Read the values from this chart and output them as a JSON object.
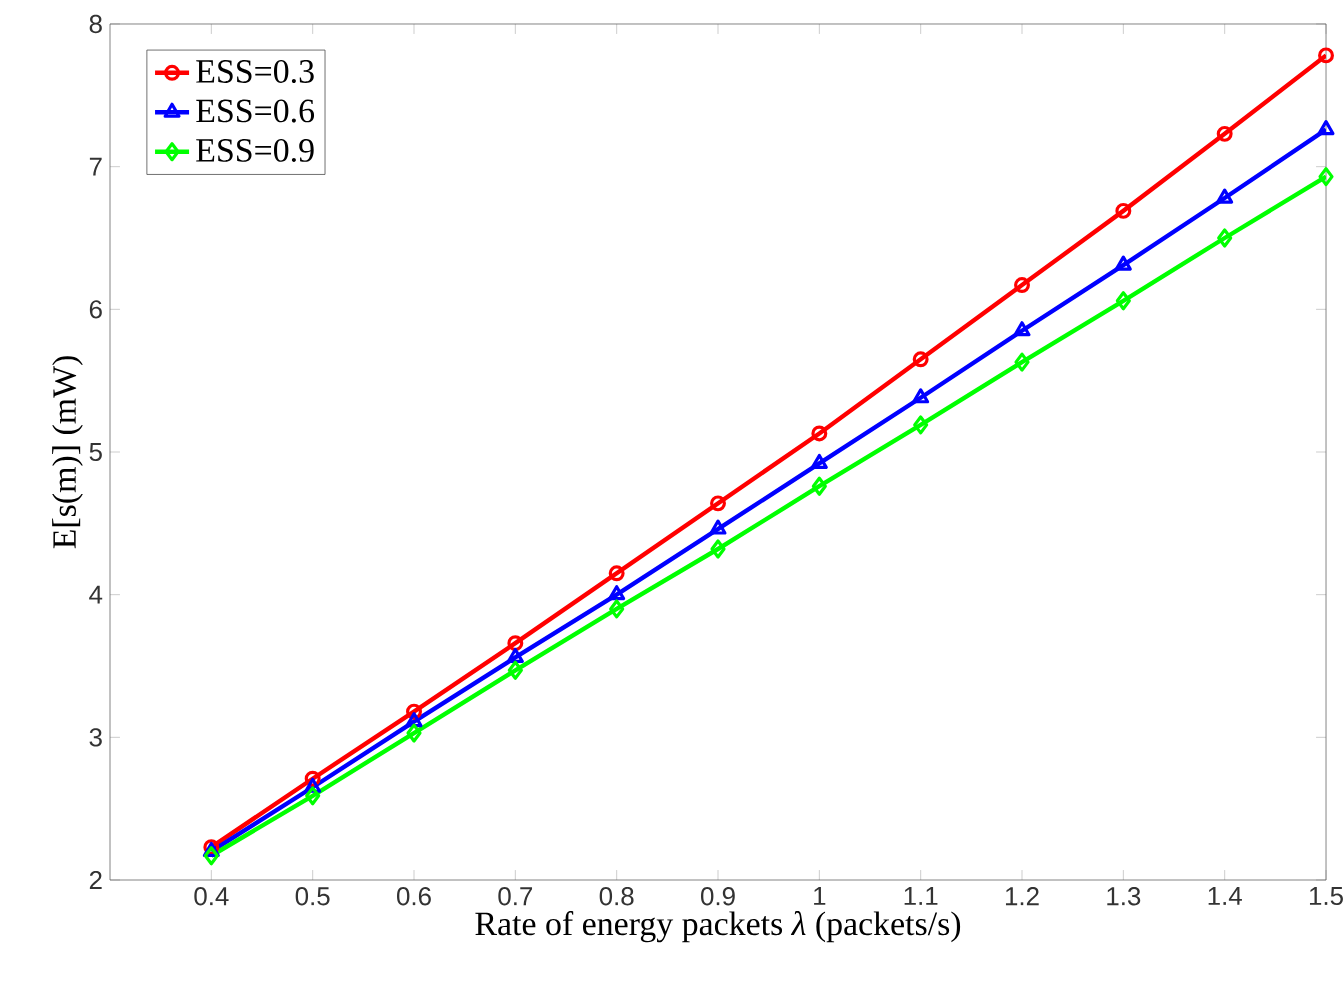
{
  "chart_data": {
    "type": "line",
    "xlabel": "Rate of energy packets *λ* (packets/s)",
    "ylabel": "E[s(m)] (mW)",
    "x": [
      0.4,
      0.5,
      0.6,
      0.7,
      0.8,
      0.9,
      1.0,
      1.1,
      1.2,
      1.3,
      1.4,
      1.5
    ],
    "xlim": [
      0.3,
      1.5
    ],
    "xticks": [
      0.4,
      0.5,
      0.6,
      0.7,
      0.8,
      0.9,
      1,
      1.1,
      1.2,
      1.3,
      1.4,
      1.5
    ],
    "ylim": [
      2,
      8
    ],
    "yticks": [
      2,
      3,
      4,
      5,
      6,
      7,
      8
    ],
    "legend": "top left",
    "grid": false,
    "line_style": "solid",
    "series": [
      {
        "name": "ESS=0.3",
        "color": "#ff0000",
        "marker": "circle",
        "values": [
          2.23,
          2.71,
          3.18,
          3.66,
          4.15,
          4.64,
          5.13,
          5.65,
          6.17,
          6.69,
          7.23,
          7.78
        ]
      },
      {
        "name": "ESS=0.6",
        "color": "#0000ff",
        "marker": "triangle",
        "values": [
          2.2,
          2.65,
          3.11,
          3.56,
          4.0,
          4.46,
          4.92,
          5.38,
          5.85,
          6.31,
          6.78,
          7.26
        ]
      },
      {
        "name": "ESS=0.9",
        "color": "#00ff00",
        "marker": "diamond",
        "values": [
          2.17,
          2.59,
          3.03,
          3.47,
          3.9,
          4.32,
          4.76,
          5.19,
          5.63,
          6.06,
          6.5,
          6.93
        ]
      }
    ]
  }
}
